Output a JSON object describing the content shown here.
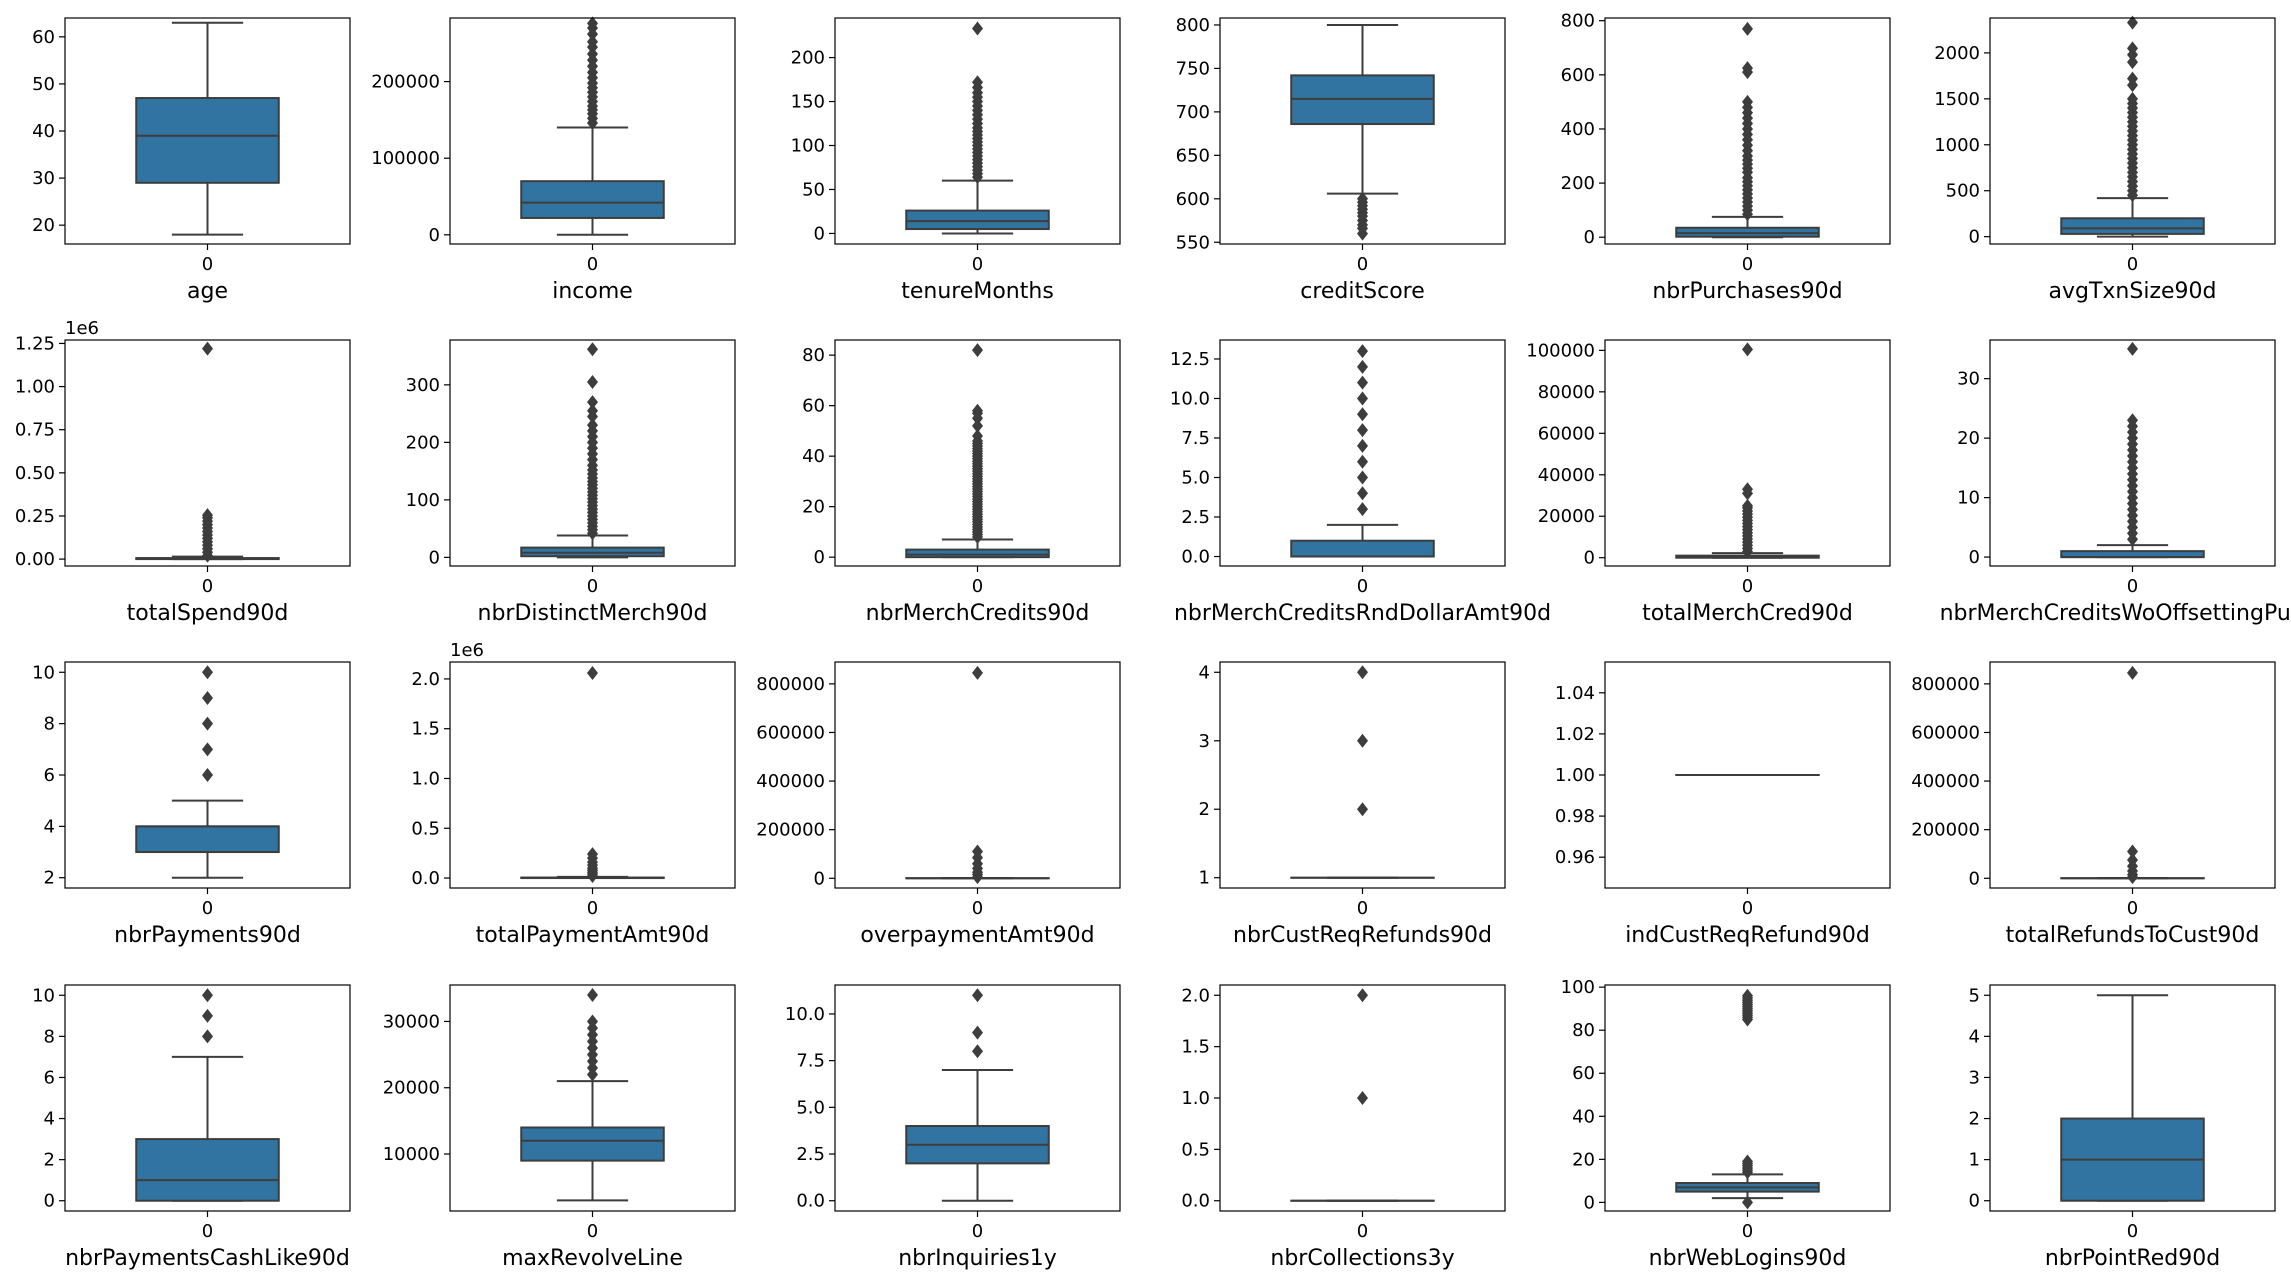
{
  "chart_data": [
    {
      "type": "box",
      "xlabel": "age",
      "category": "0",
      "ylim": [
        16,
        64
      ],
      "yticks": [
        20,
        30,
        40,
        50,
        60
      ],
      "yticklabels": [
        "20",
        "30",
        "40",
        "50",
        "60"
      ],
      "box": {
        "q1": 29,
        "median": 39,
        "q3": 47,
        "whislo": 18,
        "whishi": 63
      },
      "outliers": []
    },
    {
      "type": "box",
      "xlabel": "income",
      "category": "0",
      "ylim": [
        -12000,
        283000
      ],
      "yticks": [
        0,
        100000,
        200000
      ],
      "yticklabels": [
        "0",
        "100000",
        "200000"
      ],
      "box": {
        "q1": 22000,
        "median": 42000,
        "q3": 70000,
        "whislo": 0,
        "whishi": 140000
      },
      "outliers": [
        146000,
        152000,
        158000,
        163000,
        168000,
        174000,
        180000,
        186000,
        192000,
        198000,
        205000,
        212000,
        220000,
        228000,
        236000,
        245000,
        252000,
        262000,
        270000,
        276000
      ]
    },
    {
      "type": "box",
      "xlabel": "tenureMonths",
      "category": "0",
      "ylim": [
        -12,
        245
      ],
      "yticks": [
        0,
        50,
        100,
        150,
        200
      ],
      "yticklabels": [
        "0",
        "50",
        "100",
        "150",
        "200"
      ],
      "box": {
        "q1": 5,
        "median": 14,
        "q3": 26,
        "whislo": 0,
        "whishi": 60
      },
      "outliers": [
        64,
        68,
        72,
        76,
        80,
        84,
        88,
        92,
        96,
        100,
        104,
        108,
        112,
        116,
        120,
        125,
        130,
        135,
        140,
        145,
        150,
        155,
        160,
        166,
        172,
        233
      ]
    },
    {
      "type": "box",
      "xlabel": "creditScore",
      "category": "0",
      "ylim": [
        548,
        808
      ],
      "yticks": [
        550,
        600,
        650,
        700,
        750,
        800
      ],
      "yticklabels": [
        "550",
        "600",
        "650",
        "700",
        "750",
        "800"
      ],
      "box": {
        "q1": 686,
        "median": 715,
        "q3": 742,
        "whislo": 606,
        "whishi": 800
      },
      "outliers": [
        600,
        596,
        592,
        588,
        584,
        580,
        575,
        570,
        566,
        560
      ]
    },
    {
      "type": "box",
      "xlabel": "nbrPurchases90d",
      "category": "0",
      "ylim": [
        -25,
        810
      ],
      "yticks": [
        0,
        200,
        400,
        600,
        800
      ],
      "yticklabels": [
        "0",
        "200",
        "400",
        "600",
        "800"
      ],
      "box": {
        "q1": 2,
        "median": 15,
        "q3": 35,
        "whislo": 0,
        "whishi": 75
      },
      "outliers": [
        85,
        100,
        115,
        130,
        145,
        160,
        175,
        190,
        205,
        220,
        240,
        255,
        270,
        285,
        300,
        320,
        340,
        360,
        380,
        400,
        420,
        440,
        460,
        480,
        500,
        610,
        625,
        770
      ]
    },
    {
      "type": "box",
      "xlabel": "avgTxnSize90d",
      "category": "0",
      "ylim": [
        -80,
        2380
      ],
      "yticks": [
        0,
        500,
        1000,
        1500,
        2000
      ],
      "yticklabels": [
        "0",
        "500",
        "1000",
        "1500",
        "2000"
      ],
      "box": {
        "q1": 30,
        "median": 90,
        "q3": 200,
        "whislo": 0,
        "whishi": 420
      },
      "outliers": [
        450,
        500,
        550,
        600,
        650,
        700,
        750,
        800,
        850,
        900,
        950,
        1000,
        1050,
        1100,
        1150,
        1200,
        1250,
        1300,
        1350,
        1400,
        1450,
        1500,
        1650,
        1720,
        1900,
        1980,
        2050,
        2330
      ]
    },
    {
      "type": "box",
      "xlabel": "totalSpend90d",
      "category": "0",
      "ylim": [
        -40000,
        1270000
      ],
      "yticks": [
        0,
        250000,
        500000,
        750000,
        1000000,
        1250000
      ],
      "yticklabels": [
        "0.00",
        "0.25",
        "0.50",
        "0.75",
        "1.00",
        "1.25"
      ],
      "offset": "1e6",
      "box": {
        "q1": 0,
        "median": 2000,
        "q3": 6000,
        "whislo": 0,
        "whishi": 14000
      },
      "outliers": [
        20000,
        40000,
        60000,
        80000,
        100000,
        120000,
        140000,
        160000,
        180000,
        200000,
        220000,
        240000,
        255000,
        1220000
      ]
    },
    {
      "type": "box",
      "xlabel": "nbrDistinctMerch90d",
      "category": "0",
      "ylim": [
        -15,
        378
      ],
      "yticks": [
        0,
        100,
        200,
        300
      ],
      "yticklabels": [
        "0",
        "100",
        "200",
        "300"
      ],
      "box": {
        "q1": 2,
        "median": 8,
        "q3": 17,
        "whislo": 0,
        "whishi": 38
      },
      "outliers": [
        42,
        48,
        54,
        60,
        66,
        72,
        78,
        84,
        90,
        96,
        102,
        108,
        114,
        120,
        126,
        132,
        138,
        145,
        152,
        160,
        170,
        180,
        190,
        200,
        210,
        220,
        230,
        245,
        255,
        270,
        305,
        362
      ]
    },
    {
      "type": "box",
      "xlabel": "nbrMerchCredits90d",
      "category": "0",
      "ylim": [
        -3.5,
        86
      ],
      "yticks": [
        0,
        20,
        40,
        60,
        80
      ],
      "yticklabels": [
        "0",
        "20",
        "40",
        "60",
        "80"
      ],
      "box": {
        "q1": 0,
        "median": 1,
        "q3": 3,
        "whislo": 0,
        "whishi": 7
      },
      "outliers": [
        8,
        9,
        10,
        11,
        12,
        13,
        14,
        15,
        16,
        17,
        18,
        19,
        20,
        21,
        22,
        23,
        24,
        25,
        26,
        27,
        28,
        29,
        30,
        31,
        32,
        33,
        34,
        35,
        36,
        37,
        38,
        39,
        40,
        41,
        42,
        43,
        44,
        45,
        46,
        48,
        52,
        55,
        57,
        58,
        82
      ]
    },
    {
      "type": "box",
      "xlabel": "nbrMerchCreditsRndDollarAmt90d",
      "category": "0",
      "ylim": [
        -0.6,
        13.7
      ],
      "yticks": [
        0,
        2.5,
        5,
        7.5,
        10,
        12.5
      ],
      "yticklabels": [
        "0.0",
        "2.5",
        "5.0",
        "7.5",
        "10.0",
        "12.5"
      ],
      "box": {
        "q1": 0,
        "median": 0,
        "q3": 1,
        "whislo": 0,
        "whishi": 2
      },
      "outliers": [
        3,
        4,
        5,
        6,
        7,
        8,
        9,
        10,
        11,
        12,
        13
      ]
    },
    {
      "type": "box",
      "xlabel": "totalMerchCred90d",
      "category": "0",
      "ylim": [
        -4000,
        105000
      ],
      "yticks": [
        0,
        20000,
        40000,
        60000,
        80000,
        100000
      ],
      "yticklabels": [
        "0",
        "20000",
        "40000",
        "60000",
        "80000",
        "100000"
      ],
      "box": {
        "q1": 0,
        "median": 300,
        "q3": 1000,
        "whislo": 0,
        "whishi": 2200
      },
      "outliers": [
        3000,
        4500,
        6000,
        7500,
        9000,
        10500,
        12000,
        13500,
        15000,
        16500,
        18000,
        19500,
        21000,
        22500,
        24000,
        25000,
        31000,
        33000,
        100500
      ]
    },
    {
      "type": "box",
      "xlabel": "nbrMerchCreditsWoOffsettingPurch",
      "category": "0",
      "ylim": [
        -1.5,
        36.5
      ],
      "yticks": [
        0,
        10,
        20,
        30
      ],
      "yticklabels": [
        "0",
        "10",
        "20",
        "30"
      ],
      "box": {
        "q1": 0,
        "median": 0,
        "q3": 1,
        "whislo": 0,
        "whishi": 2
      },
      "outliers": [
        3,
        4,
        5,
        6,
        7,
        8,
        9,
        10,
        11,
        12,
        13,
        14,
        15,
        16,
        17,
        18,
        19,
        20,
        21,
        22,
        23,
        35
      ]
    },
    {
      "type": "box",
      "xlabel": "nbrPayments90d",
      "category": "0",
      "ylim": [
        1.6,
        10.4
      ],
      "yticks": [
        2,
        4,
        6,
        8,
        10
      ],
      "yticklabels": [
        "2",
        "4",
        "6",
        "8",
        "10"
      ],
      "box": {
        "q1": 3,
        "median": 4,
        "q3": 4,
        "whislo": 2,
        "whishi": 5
      },
      "outliers": [
        6,
        7,
        8,
        9,
        10
      ]
    },
    {
      "type": "box",
      "xlabel": "totalPaymentAmt90d",
      "category": "0",
      "ylim": [
        -100000,
        2170000
      ],
      "yticks": [
        0,
        500000,
        1000000,
        1500000,
        2000000
      ],
      "yticklabels": [
        "0.0",
        "0.5",
        "1.0",
        "1.5",
        "2.0"
      ],
      "offset": "1e6",
      "box": {
        "q1": 0,
        "median": 2000,
        "q3": 5000,
        "whislo": 0,
        "whishi": 12000
      },
      "outliers": [
        20000,
        40000,
        60000,
        80000,
        100000,
        130000,
        160000,
        200000,
        240000,
        2060000
      ]
    },
    {
      "type": "box",
      "xlabel": "overpaymentAmt90d",
      "category": "0",
      "ylim": [
        -40000,
        890000
      ],
      "yticks": [
        0,
        200000,
        400000,
        600000,
        800000
      ],
      "yticklabels": [
        "0",
        "200000",
        "400000",
        "600000",
        "800000"
      ],
      "box": {
        "q1": 0,
        "median": 0,
        "q3": 500,
        "whislo": 0,
        "whishi": 1200
      },
      "outliers": [
        5000,
        15000,
        25000,
        40000,
        60000,
        85000,
        110000,
        845000
      ]
    },
    {
      "type": "box",
      "xlabel": "nbrCustReqRefunds90d",
      "category": "0",
      "ylim": [
        0.85,
        4.15
      ],
      "yticks": [
        1,
        2,
        3,
        4
      ],
      "yticklabels": [
        "1",
        "2",
        "3",
        "4"
      ],
      "box": {
        "q1": 1,
        "median": 1,
        "q3": 1,
        "whislo": 1,
        "whishi": 1
      },
      "outliers": [
        2,
        3,
        4
      ]
    },
    {
      "type": "box",
      "xlabel": "indCustReqRefund90d",
      "category": "0",
      "ylim": [
        0.945,
        1.055
      ],
      "yticks": [
        0.96,
        0.98,
        1.0,
        1.02,
        1.04
      ],
      "yticklabels": [
        "0.96",
        "0.98",
        "1.00",
        "1.02",
        "1.04"
      ],
      "box": {
        "q1": 1,
        "median": 1,
        "q3": 1,
        "whislo": 1,
        "whishi": 1
      },
      "outliers": []
    },
    {
      "type": "box",
      "xlabel": "totalRefundsToCust90d",
      "category": "0",
      "ylim": [
        -40000,
        890000
      ],
      "yticks": [
        0,
        200000,
        400000,
        600000,
        800000
      ],
      "yticklabels": [
        "0",
        "200000",
        "400000",
        "600000",
        "800000"
      ],
      "box": {
        "q1": 0,
        "median": 0,
        "q3": 500,
        "whislo": 0,
        "whishi": 1200
      },
      "outliers": [
        5000,
        15000,
        30000,
        50000,
        75000,
        110000,
        845000
      ]
    },
    {
      "type": "box",
      "xlabel": "nbrPaymentsCashLike90d",
      "category": "0",
      "ylim": [
        -0.5,
        10.5
      ],
      "yticks": [
        0,
        2,
        4,
        6,
        8,
        10
      ],
      "yticklabels": [
        "0",
        "2",
        "4",
        "6",
        "8",
        "10"
      ],
      "box": {
        "q1": 0,
        "median": 1,
        "q3": 3,
        "whislo": 0,
        "whishi": 7
      },
      "outliers": [
        8,
        9,
        10
      ]
    },
    {
      "type": "box",
      "xlabel": "maxRevolveLine",
      "category": "0",
      "ylim": [
        1400,
        35500
      ],
      "yticks": [
        10000,
        20000,
        30000
      ],
      "yticklabels": [
        "10000",
        "20000",
        "30000"
      ],
      "box": {
        "q1": 9000,
        "median": 12000,
        "q3": 14000,
        "whislo": 3000,
        "whishi": 21000
      },
      "outliers": [
        22000,
        23000,
        24000,
        25000,
        26000,
        27000,
        28000,
        29000,
        30000,
        34000
      ]
    },
    {
      "type": "box",
      "xlabel": "nbrInquiries1y",
      "category": "0",
      "ylim": [
        -0.55,
        11.55
      ],
      "yticks": [
        0,
        2.5,
        5,
        7.5,
        10
      ],
      "yticklabels": [
        "0.0",
        "2.5",
        "5.0",
        "7.5",
        "10.0"
      ],
      "box": {
        "q1": 2,
        "median": 3,
        "q3": 4,
        "whislo": 0,
        "whishi": 7
      },
      "outliers": [
        8,
        9,
        11
      ]
    },
    {
      "type": "box",
      "xlabel": "nbrCollections3y",
      "category": "0",
      "ylim": [
        -0.1,
        2.1
      ],
      "yticks": [
        0,
        0.5,
        1,
        1.5,
        2
      ],
      "yticklabels": [
        "0.0",
        "0.5",
        "1.0",
        "1.5",
        "2.0"
      ],
      "box": {
        "q1": 0,
        "median": 0,
        "q3": 0,
        "whislo": 0,
        "whishi": 0
      },
      "outliers": [
        1,
        2
      ]
    },
    {
      "type": "box",
      "xlabel": "nbrWebLogins90d",
      "category": "0",
      "ylim": [
        -4,
        101
      ],
      "yticks": [
        0,
        20,
        40,
        60,
        80,
        100
      ],
      "yticklabels": [
        "0",
        "20",
        "40",
        "60",
        "80",
        "100"
      ],
      "box": {
        "q1": 5,
        "median": 7,
        "q3": 9,
        "whislo": 2,
        "whishi": 13
      },
      "outliers": [
        0,
        14,
        15,
        16,
        17,
        18,
        19,
        85,
        86,
        87,
        88,
        89,
        90,
        91,
        92,
        93,
        94,
        95,
        96
      ]
    },
    {
      "type": "box",
      "xlabel": "nbrPointRed90d",
      "category": "0",
      "ylim": [
        -0.25,
        5.25
      ],
      "yticks": [
        0,
        1,
        2,
        3,
        4,
        5
      ],
      "yticklabels": [
        "0",
        "1",
        "2",
        "3",
        "4",
        "5"
      ],
      "box": {
        "q1": 0,
        "median": 1,
        "q3": 2,
        "whislo": 0,
        "whishi": 5
      },
      "outliers": []
    }
  ]
}
